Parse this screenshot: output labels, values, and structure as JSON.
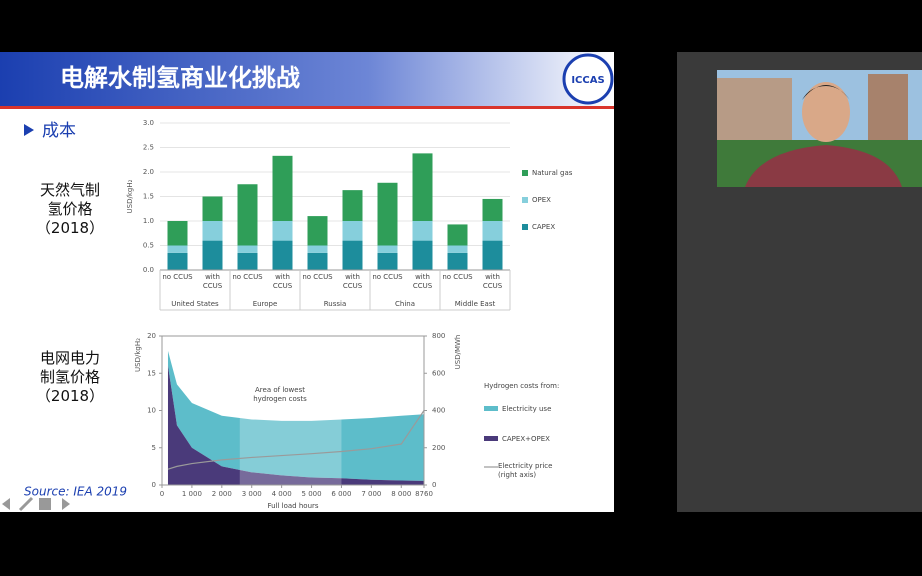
{
  "slide": {
    "title": "电解水制氢商业化挑战",
    "logo": "ICCAS",
    "bullet": "成本",
    "label_1": [
      "天然气制",
      "氢价格",
      "（2018）"
    ],
    "label_2": [
      "电网电力",
      "制氢价格",
      "（2018）"
    ],
    "source": "Source: IEA 2019"
  },
  "chart_data": [
    {
      "type": "bar",
      "stacked": true,
      "y_label": "USD/kgH₂",
      "categories": [
        "no CCUS",
        "with CCUS",
        "no CCUS",
        "with CCUS",
        "no CCUS",
        "with CCUS",
        "no CCUS",
        "with CCUS",
        "no CCUS",
        "with CCUS"
      ],
      "groups": [
        "United States",
        "Europe",
        "Russia",
        "China",
        "Middle East"
      ],
      "ylim": [
        0,
        3
      ],
      "yticks": [
        {
          "value": 0,
          "label": "0.0"
        },
        {
          "value": 0.5,
          "label": "0.5"
        },
        {
          "value": 1,
          "label": "1.0"
        },
        {
          "value": 1.5,
          "label": "1.5"
        },
        {
          "value": 2,
          "label": "2.0"
        },
        {
          "value": 2.5,
          "label": "2.5"
        },
        {
          "value": 3,
          "label": "3.0"
        }
      ],
      "series": [
        {
          "name": "CAPEX",
          "color": "#1d8d9c",
          "values": [
            0.35,
            0.6,
            0.35,
            0.6,
            0.35,
            0.6,
            0.35,
            0.6,
            0.35,
            0.6
          ]
        },
        {
          "name": "OPEX",
          "color": "#86cfdc",
          "values": [
            0.15,
            0.4,
            0.15,
            0.4,
            0.15,
            0.4,
            0.15,
            0.4,
            0.15,
            0.4
          ]
        },
        {
          "name": "Natural gas",
          "color": "#2f9e58",
          "values": [
            0.5,
            0.5,
            1.25,
            1.33,
            0.6,
            0.63,
            1.28,
            1.38,
            0.43,
            0.45
          ]
        }
      ]
    },
    {
      "type": "area",
      "x_label": "Full load hours",
      "y_label": "USD/kgH₂",
      "y2_label": "USD/MWh",
      "annotation": "Area of lowest hydrogen costs",
      "legend_title": "Hydrogen costs from:",
      "highlight": [
        2600,
        6000
      ],
      "xlim": [
        0,
        8760
      ],
      "xticks": [
        0,
        {
          "value": 1000,
          "label": "1 000"
        },
        {
          "value": 2000,
          "label": "2 000"
        },
        {
          "value": 3000,
          "label": "3 000"
        },
        {
          "value": 4000,
          "label": "4 000"
        },
        {
          "value": 5000,
          "label": "5 000"
        },
        {
          "value": 6000,
          "label": "6 000"
        },
        {
          "value": 7000,
          "label": "7 000"
        },
        {
          "value": 8000,
          "label": "8 000"
        },
        8760
      ],
      "ylim": [
        0,
        20
      ],
      "yticks": [
        0,
        5,
        10,
        15,
        20
      ],
      "y2lim": [
        0,
        800
      ],
      "y2ticks": [
        0,
        200,
        400,
        600,
        800
      ],
      "x": [
        200,
        500,
        1000,
        2000,
        3000,
        4000,
        5000,
        6000,
        7000,
        8000,
        8760
      ],
      "series": [
        {
          "name": "Electricity use",
          "color": "#5dbdca",
          "values": [
            2,
            5.5,
            6,
            6.8,
            7.1,
            7.3,
            7.6,
            7.9,
            8.3,
            8.7,
            8.95
          ]
        },
        {
          "name": "CAPEX+OPEX",
          "color": "#4a3a7a",
          "values": [
            16,
            8,
            5,
            2.5,
            1.7,
            1.3,
            1,
            0.9,
            0.7,
            0.6,
            0.55
          ]
        },
        {
          "name": "Electricity price (right axis)",
          "color": "#9a9a9a",
          "axis": "y2",
          "values": [
            85,
            100,
            115,
            135,
            148,
            158,
            168,
            180,
            195,
            220,
            400
          ]
        }
      ]
    }
  ]
}
